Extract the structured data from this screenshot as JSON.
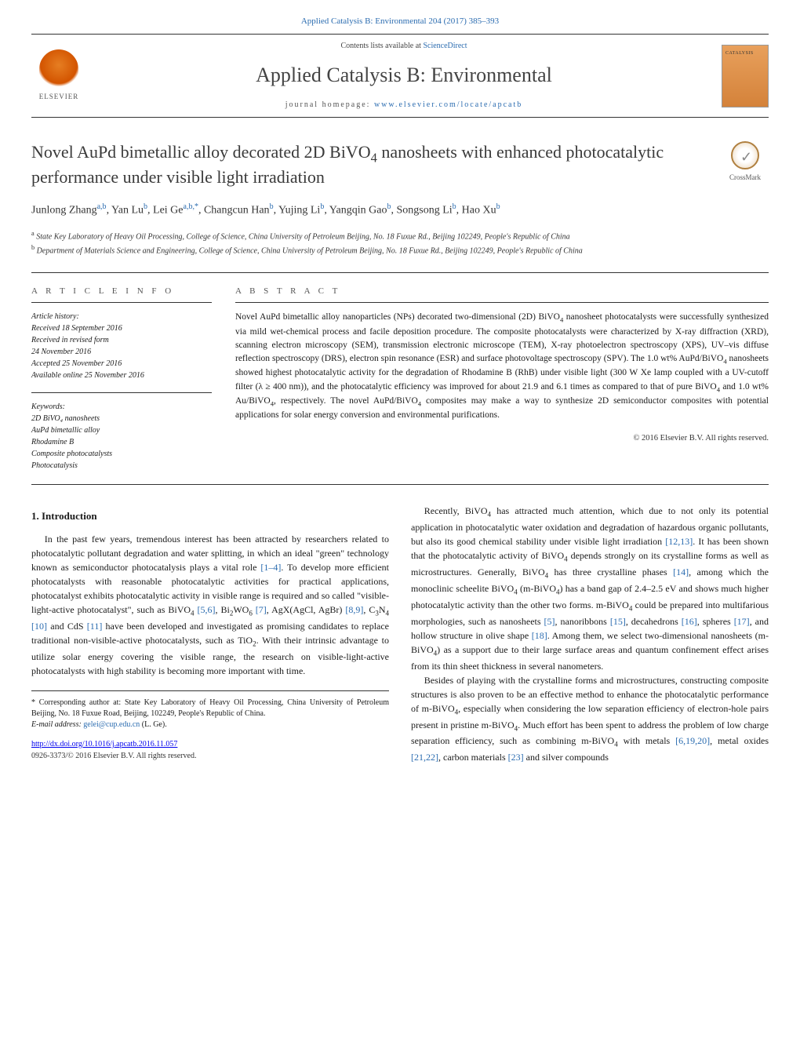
{
  "header": {
    "citation": "Applied Catalysis B: Environmental 204 (2017) 385–393",
    "contents_prefix": "Contents lists available at ",
    "contents_link": "ScienceDirect",
    "journal_name": "Applied Catalysis B: Environmental",
    "homepage_prefix": "journal homepage: ",
    "homepage_link": "www.elsevier.com/locate/apcatb",
    "publisher_name": "ELSEVIER"
  },
  "article": {
    "title_html": "Novel AuPd bimetallic alloy decorated 2D BiVO<sub>4</sub> nanosheets with enhanced photocatalytic performance under visible light irradiation",
    "crossmark_label": "CrossMark",
    "authors_html": "Junlong Zhang<sup>a,b</sup>, Yan Lu<sup>b</sup>, Lei Ge<sup>a,b,*</sup>, Changcun Han<sup>b</sup>, Yujing Li<sup>b</sup>, Yangqin Gao<sup>b</sup>, Songsong Li<sup>b</sup>, Hao Xu<sup>b</sup>",
    "affiliations": [
      {
        "sup": "a",
        "text": "State Key Laboratory of Heavy Oil Processing, College of Science, China University of Petroleum Beijing, No. 18 Fuxue Rd., Beijing 102249, People's Republic of China"
      },
      {
        "sup": "b",
        "text": "Department of Materials Science and Engineering, College of Science, China University of Petroleum Beijing, No. 18 Fuxue Rd., Beijing 102249, People's Republic of China"
      }
    ]
  },
  "info": {
    "heading": "a r t i c l e   i n f o",
    "history_label": "Article history:",
    "history": [
      "Received 18 September 2016",
      "Received in revised form",
      "24 November 2016",
      "Accepted 25 November 2016",
      "Available online 25 November 2016"
    ],
    "keywords_label": "Keywords:",
    "keywords": [
      "2D BiVO₄ nanosheets",
      "AuPd bimetallic alloy",
      "Rhodamine B",
      "Composite photocatalysts",
      "Photocatalysis"
    ]
  },
  "abstract": {
    "heading": "a b s t r a c t",
    "text_html": "Novel AuPd bimetallic alloy nanoparticles (NPs) decorated two-dimensional (2D) BiVO<sub>4</sub> nanosheet photocatalysts were successfully synthesized via mild wet-chemical process and facile deposition procedure. The composite photocatalysts were characterized by X-ray diffraction (XRD), scanning electron microscopy (SEM), transmission electronic microscope (TEM), X-ray photoelectron spectroscopy (XPS), UV–vis diffuse reflection spectroscopy (DRS), electron spin resonance (ESR) and surface photovoltage spectroscopy (SPV). The 1.0 wt% AuPd/BiVO<sub>4</sub> nanosheets showed highest photocatalytic activity for the degradation of Rhodamine B (RhB) under visible light (300 W Xe lamp coupled with a UV-cutoff filter (λ ≥ 400 nm)), and the photocatalytic efficiency was improved for about 21.9 and 6.1 times as compared to that of pure BiVO<sub>4</sub> and 1.0 wt% Au/BiVO<sub>4</sub>, respectively. The novel AuPd/BiVO<sub>4</sub> composites may make a way to synthesize 2D semiconductor composites with potential applications for solar energy conversion and environmental purifications.",
    "copyright": "© 2016 Elsevier B.V. All rights reserved."
  },
  "body": {
    "section_heading": "1. Introduction",
    "p1_html": "In the past few years, tremendous interest has been attracted by researchers related to photocatalytic pollutant degradation and water splitting, in which an ideal \"green\" technology known as semiconductor photocatalysis plays a vital role <span class=\"ref-link\">[1–4]</span>. To develop more efficient photocatalysts with reasonable photocatalytic activities for practical applications, photocatalyst exhibits photocatalytic activity in visible range is required and so called \"visible-light-active photocatalyst\", such as BiVO<sub>4</sub> <span class=\"ref-link\">[5,6]</span>, Bi<sub>2</sub>WO<sub>6</sub> <span class=\"ref-link\">[7]</span>, AgX(AgCl, AgBr) <span class=\"ref-link\">[8,9]</span>, C<sub>3</sub>N<sub>4</sub> <span class=\"ref-link\">[10]</span> and CdS <span class=\"ref-link\">[11]</span> have been developed and investigated as promising candidates to replace traditional non-visible-active photocatalysts, such as TiO<sub>2</sub>. With their intrinsic advantage to utilize solar energy covering the visible range, the research on visible-light-active photocatalysts with high stability is becoming more important with time.",
    "p2_html": "Recently, BiVO<sub>4</sub> has attracted much attention, which due to not only its potential application in photocatalytic water oxidation and degradation of hazardous organic pollutants, but also its good chemical stability under visible light irradiation <span class=\"ref-link\">[12,13]</span>. It has been shown that the photocatalytic activity of BiVO<sub>4</sub> depends strongly on its crystalline forms as well as microstructures. Generally, BiVO<sub>4</sub> has three crystalline phases <span class=\"ref-link\">[14]</span>, among which the monoclinic scheelite BiVO<sub>4</sub> (m-BiVO<sub>4</sub>) has a band gap of 2.4–2.5 eV and shows much higher photocatalytic activity than the other two forms. m-BiVO<sub>4</sub> could be prepared into multifarious morphologies, such as nanosheets <span class=\"ref-link\">[5]</span>, nanoribbons <span class=\"ref-link\">[15]</span>, decahedrons <span class=\"ref-link\">[16]</span>, spheres <span class=\"ref-link\">[17]</span>, and hollow structure in olive shape <span class=\"ref-link\">[18]</span>. Among them, we select two-dimensional nanosheets (m-BiVO<sub>4</sub>) as a support due to their large surface areas and quantum confinement effect arises from its thin sheet thickness in several nanometers.",
    "p3_html": "Besides of playing with the crystalline forms and microstructures, constructing composite structures is also proven to be an effective method to enhance the photocatalytic performance of m-BiVO<sub>4</sub>, especially when considering the low separation efficiency of electron-hole pairs present in pristine m-BiVO<sub>4</sub>. Much effort has been spent to address the problem of low charge separation efficiency, such as combining m-BiVO<sub>4</sub> with metals <span class=\"ref-link\">[6,19,20]</span>, metal oxides <span class=\"ref-link\">[21,22]</span>, carbon materials <span class=\"ref-link\">[23]</span> and silver compounds"
  },
  "footnote": {
    "corr_html": "* Corresponding author at: State Key Laboratory of Heavy Oil Processing, China University of Petroleum Beijing, No. 18 Fuxue Road, Beijing, 102249, People's Republic of China.",
    "email_label": "E-mail address: ",
    "email": "gelei@cup.edu.cn",
    "email_suffix": " (L. Ge)."
  },
  "doi": {
    "link": "http://dx.doi.org/10.1016/j.apcatb.2016.11.057",
    "copy": "0926-3373/© 2016 Elsevier B.V. All rights reserved."
  },
  "colors": {
    "link": "#2b6cb0",
    "text": "#1a1a1a",
    "rule": "#333333",
    "elsevier_orange": "#e67e22",
    "cover_bg": "#d4823a"
  }
}
